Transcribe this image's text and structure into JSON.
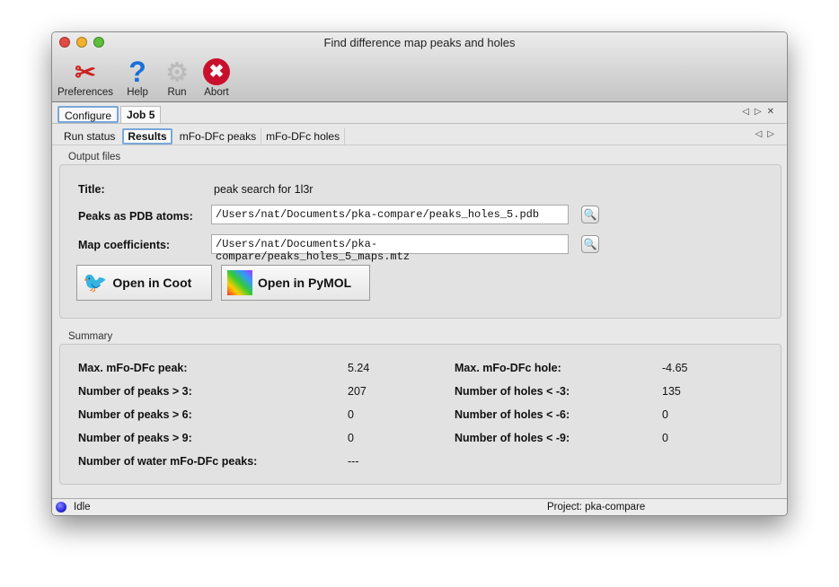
{
  "window": {
    "title": "Find difference map peaks and holes"
  },
  "toolbar": {
    "preferences": "Preferences",
    "help": "Help",
    "run": "Run",
    "abort": "Abort"
  },
  "tabs": [
    {
      "label": "Configure"
    },
    {
      "label": "Job 5"
    }
  ],
  "subtabs": [
    {
      "label": "Run status"
    },
    {
      "label": "Results"
    },
    {
      "label": "mFo-DFc peaks"
    },
    {
      "label": "mFo-DFc holes"
    }
  ],
  "output": {
    "section": "Output files",
    "title_label": "Title:",
    "title_value": "peak search for 1l3r",
    "pdb_label": "Peaks as PDB atoms:",
    "pdb_value": "/Users/nat/Documents/pka-compare/peaks_holes_5.pdb",
    "map_label": "Map coefficients:",
    "map_value": "/Users/nat/Documents/pka-compare/peaks_holes_5_maps.mtz",
    "coot": "Open in Coot",
    "pymol": "Open in PyMOL"
  },
  "summary": {
    "section": "Summary",
    "rows": [
      {
        "l1": "Max. mFo-DFc peak:",
        "v1": "5.24",
        "l2": "Max. mFo-DFc hole:",
        "v2": "-4.65"
      },
      {
        "l1": "Number of peaks > 3:",
        "v1": "207",
        "l2": "Number of holes < -3:",
        "v2": "135"
      },
      {
        "l1": "Number of peaks > 6:",
        "v1": "0",
        "l2": "Number of holes < -6:",
        "v2": "0"
      },
      {
        "l1": "Number of peaks > 9:",
        "v1": "0",
        "l2": "Number of holes < -9:",
        "v2": "0"
      },
      {
        "l1": "Number of water mFo-DFc peaks:",
        "v1": "---",
        "l2": "",
        "v2": ""
      }
    ]
  },
  "status": {
    "state": "Idle",
    "project": "Project: pka-compare",
    "indicator_color": "#2a2adf"
  }
}
